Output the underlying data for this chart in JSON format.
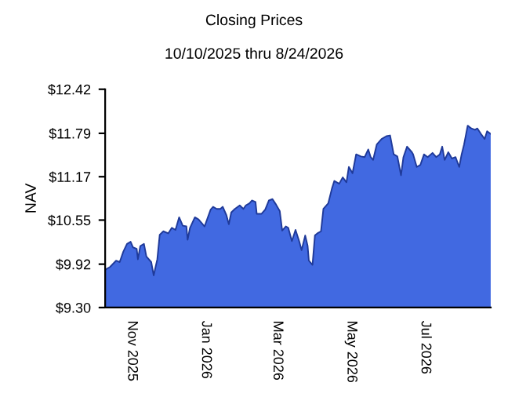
{
  "chart_data": {
    "type": "area",
    "title": "Closing Prices",
    "subtitle": "10/10/2025 thru 8/24/2026",
    "ylabel": "NAV",
    "x": [
      "2025-10-10",
      "2025-10-14",
      "2025-10-19",
      "2025-10-22",
      "2025-10-25",
      "2025-10-28",
      "2025-10-31",
      "2025-11-02",
      "2025-11-05",
      "2025-11-06",
      "2025-11-08",
      "2025-11-11",
      "2025-11-13",
      "2025-11-17",
      "2025-11-19",
      "2025-11-22",
      "2025-11-24",
      "2025-11-27",
      "2025-12-01",
      "2025-12-04",
      "2025-12-07",
      "2025-12-10",
      "2025-12-13",
      "2025-12-16",
      "2025-12-17",
      "2025-12-19",
      "2025-12-23",
      "2025-12-26",
      "2025-12-31",
      "2026-01-05",
      "2026-01-07",
      "2026-01-10",
      "2026-01-13",
      "2026-01-15",
      "2026-01-18",
      "2026-01-20",
      "2026-01-22",
      "2026-01-25",
      "2026-01-29",
      "2026-02-01",
      "2026-02-03",
      "2026-02-06",
      "2026-02-08",
      "2026-02-11",
      "2026-02-12",
      "2026-02-16",
      "2026-02-19",
      "2026-02-22",
      "2026-02-25",
      "2026-02-28",
      "2026-03-03",
      "2026-03-05",
      "2026-03-08",
      "2026-03-10",
      "2026-03-13",
      "2026-03-16",
      "2026-03-19",
      "2026-03-21",
      "2026-03-24",
      "2026-03-26",
      "2026-03-27",
      "2026-03-30",
      "2026-04-01",
      "2026-04-03",
      "2026-04-06",
      "2026-04-08",
      "2026-04-12",
      "2026-04-15",
      "2026-04-17",
      "2026-04-21",
      "2026-04-24",
      "2026-04-27",
      "2026-04-29",
      "2026-05-02",
      "2026-05-05",
      "2026-05-09",
      "2026-05-12",
      "2026-05-15",
      "2026-05-17",
      "2026-05-19",
      "2026-05-22",
      "2026-05-26",
      "2026-05-30",
      "2026-06-02",
      "2026-06-05",
      "2026-06-08",
      "2026-06-11",
      "2026-06-13",
      "2026-06-16",
      "2026-06-20",
      "2026-06-21",
      "2026-06-24",
      "2026-06-27",
      "2026-06-30",
      "2026-07-03",
      "2026-07-07",
      "2026-07-10",
      "2026-07-13",
      "2026-07-15",
      "2026-07-17",
      "2026-07-20",
      "2026-07-23",
      "2026-07-26",
      "2026-07-29",
      "2026-07-31",
      "2026-08-02",
      "2026-08-05",
      "2026-08-08",
      "2026-08-11",
      "2026-08-13",
      "2026-08-16",
      "2026-08-19",
      "2026-08-21",
      "2026-08-24"
    ],
    "series": [
      {
        "color": "#4169e1",
        "values": [
          9.84,
          9.88,
          9.97,
          9.95,
          10.1,
          10.21,
          10.24,
          10.16,
          10.14,
          9.99,
          10.18,
          10.21,
          10.03,
          9.95,
          9.76,
          9.99,
          10.34,
          10.39,
          10.36,
          10.44,
          10.41,
          10.59,
          10.47,
          10.46,
          10.27,
          10.44,
          10.59,
          10.56,
          10.46,
          10.7,
          10.74,
          10.71,
          10.71,
          10.74,
          10.62,
          10.49,
          10.66,
          10.71,
          10.76,
          10.71,
          10.76,
          10.79,
          10.83,
          10.81,
          10.64,
          10.64,
          10.7,
          10.83,
          10.85,
          10.77,
          10.68,
          10.4,
          10.46,
          10.44,
          10.25,
          10.41,
          10.25,
          10.12,
          10.33,
          10.18,
          9.97,
          9.91,
          10.33,
          10.36,
          10.39,
          10.71,
          10.79,
          11.0,
          11.11,
          11.07,
          11.16,
          11.09,
          11.31,
          11.22,
          11.49,
          11.46,
          11.45,
          11.56,
          11.45,
          11.41,
          11.63,
          11.71,
          11.75,
          11.76,
          11.49,
          11.46,
          11.19,
          11.45,
          11.6,
          11.52,
          11.49,
          11.31,
          11.34,
          11.49,
          11.45,
          11.51,
          11.45,
          11.49,
          11.6,
          11.41,
          11.52,
          11.43,
          11.45,
          11.31,
          11.49,
          11.63,
          11.9,
          11.86,
          11.84,
          11.86,
          11.78,
          11.71,
          11.82,
          11.78
        ]
      }
    ],
    "xlim": [
      "2025-10-10",
      "2026-08-24"
    ],
    "xticks": [
      {
        "value": "2025-11-01",
        "label": "Nov 2025"
      },
      {
        "value": "2026-01-01",
        "label": "Jan 2026"
      },
      {
        "value": "2026-03-01",
        "label": "Mar 2026"
      },
      {
        "value": "2026-05-01",
        "label": "May 2026"
      },
      {
        "value": "2026-07-01",
        "label": "Jul 2026"
      }
    ],
    "ylim": [
      9.3,
      12.42
    ],
    "yticks": [
      {
        "value": 9.3,
        "label": "$9.30"
      },
      {
        "value": 9.92,
        "label": "$9.92"
      },
      {
        "value": 10.55,
        "label": "$10.55"
      },
      {
        "value": 11.17,
        "label": "$11.17"
      },
      {
        "value": 11.79,
        "label": "$11.79"
      },
      {
        "value": 12.42,
        "label": "$12.42"
      }
    ],
    "grid": false,
    "legend": false
  }
}
